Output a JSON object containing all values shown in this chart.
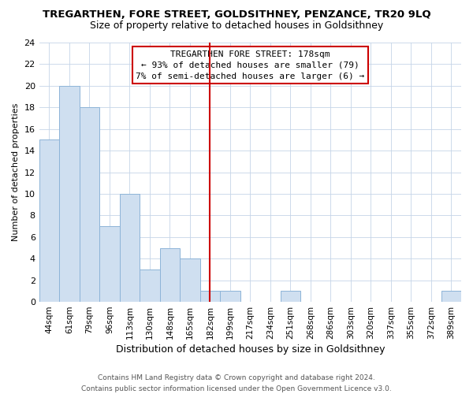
{
  "title": "TREGARTHEN, FORE STREET, GOLDSITHNEY, PENZANCE, TR20 9LQ",
  "subtitle": "Size of property relative to detached houses in Goldsithney",
  "xlabel": "Distribution of detached houses by size in Goldsithney",
  "ylabel": "Number of detached properties",
  "footer_line1": "Contains HM Land Registry data © Crown copyright and database right 2024.",
  "footer_line2": "Contains public sector information licensed under the Open Government Licence v3.0.",
  "bin_labels": [
    "44sqm",
    "61sqm",
    "79sqm",
    "96sqm",
    "113sqm",
    "130sqm",
    "148sqm",
    "165sqm",
    "182sqm",
    "199sqm",
    "217sqm",
    "234sqm",
    "251sqm",
    "268sqm",
    "286sqm",
    "303sqm",
    "320sqm",
    "337sqm",
    "355sqm",
    "372sqm",
    "389sqm"
  ],
  "bar_heights": [
    15,
    20,
    18,
    7,
    10,
    3,
    5,
    4,
    1,
    1,
    0,
    0,
    1,
    0,
    0,
    0,
    0,
    0,
    0,
    0,
    1
  ],
  "bar_color": "#cfdff0",
  "bar_edge_color": "#8db4d8",
  "vline_x_index": 8,
  "vline_color": "#cc0000",
  "annotation_title": "TREGARTHEN FORE STREET: 178sqm",
  "annotation_line1": "← 93% of detached houses are smaller (79)",
  "annotation_line2": "7% of semi-detached houses are larger (6) →",
  "annotation_box_color": "#ffffff",
  "annotation_box_edge_color": "#cc0000",
  "ylim": [
    0,
    24
  ],
  "yticks": [
    0,
    2,
    4,
    6,
    8,
    10,
    12,
    14,
    16,
    18,
    20,
    22,
    24
  ],
  "title_fontsize": 9.5,
  "subtitle_fontsize": 9.0,
  "xlabel_fontsize": 9.0,
  "ylabel_fontsize": 8.0,
  "tick_fontsize": 8.0,
  "xtick_fontsize": 7.5,
  "footer_fontsize": 6.5,
  "annotation_fontsize": 8.0
}
